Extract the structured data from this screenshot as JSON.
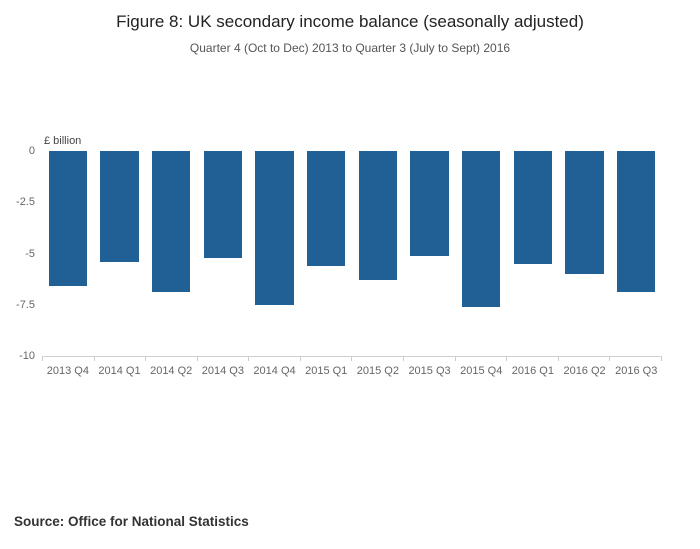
{
  "header": {
    "title": "Figure 8: UK secondary income balance (seasonally adjusted)",
    "subtitle": "Quarter 4 (Oct to Dec) 2013 to Quarter 3 (July to Sept) 2016"
  },
  "footer": {
    "source": "Source: Office for National Statistics"
  },
  "chart_data": {
    "type": "bar",
    "title": "Figure 8: UK secondary income balance (seasonally adjusted)",
    "subtitle": "Quarter 4 (Oct to Dec) 2013 to Quarter 3 (July to Sept) 2016",
    "categories": [
      "2013 Q4",
      "2014 Q1",
      "2014 Q2",
      "2014 Q3",
      "2014 Q4",
      "2015 Q1",
      "2015 Q2",
      "2015 Q3",
      "2015 Q4",
      "2016 Q1",
      "2016 Q2",
      "2016 Q3"
    ],
    "values": [
      -6.6,
      -5.4,
      -6.9,
      -5.2,
      -7.5,
      -5.6,
      -6.3,
      -5.1,
      -7.6,
      -5.5,
      -6.0,
      -6.9
    ],
    "xlabel": "",
    "ylabel": "£ billion",
    "ylim": [
      -10,
      0
    ],
    "yticks": [
      0,
      -2.5,
      -5,
      -7.5,
      -10
    ],
    "bar_color": "#206095",
    "grid": false,
    "legend_position": "none"
  }
}
